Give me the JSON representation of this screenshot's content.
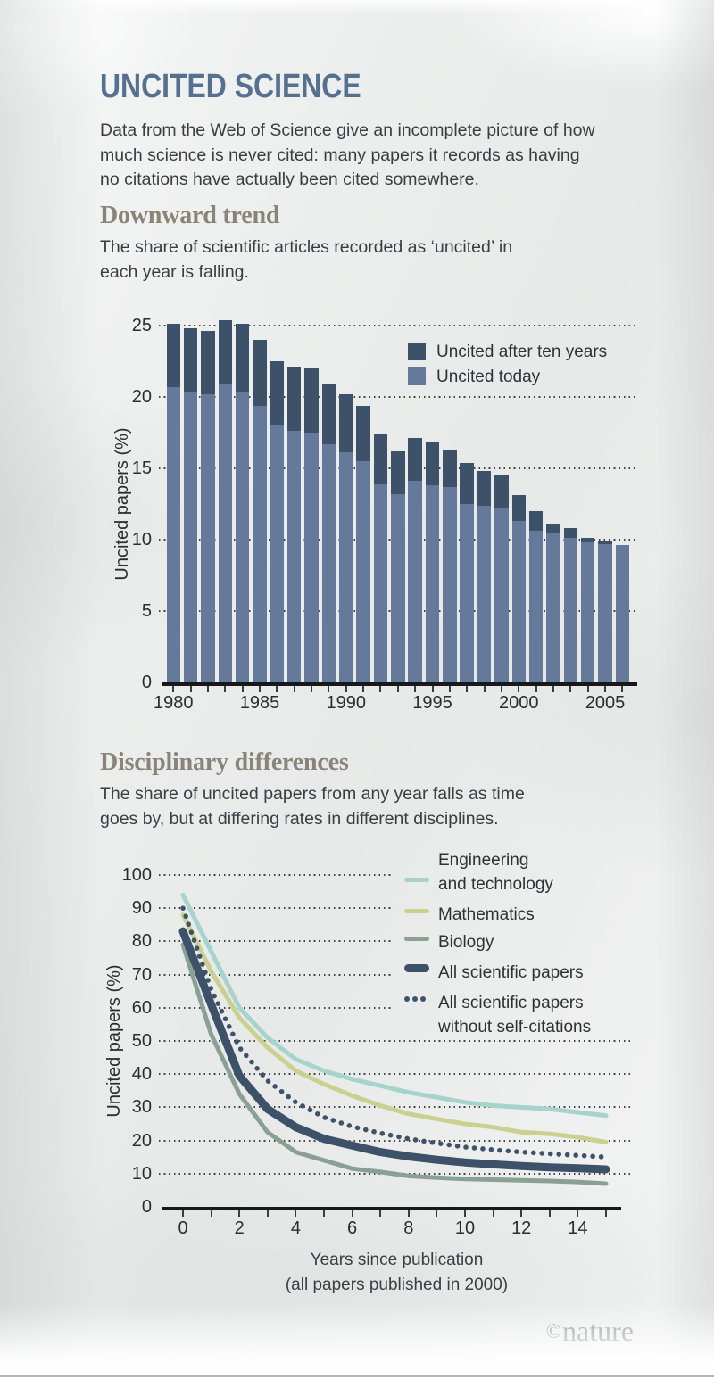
{
  "page": {
    "title": "UNCITED SCIENCE",
    "intro": "Data from the Web of Science give an incomplete picture of how\nmuch science is never cited: many papers it records as having\nno citations have actually been cited somewhere.",
    "brand_mark": "©",
    "brand_name": "nature",
    "background_color": "#edefee",
    "title_color": "#56708f",
    "heading_color": "#8a8377",
    "text_color": "#3a3e42"
  },
  "chart_data": [
    {
      "type": "bar",
      "title": "Downward trend",
      "subtitle": "The share of scientific articles recorded as ‘uncited’ in\neach year is falling.",
      "ylabel": "Uncited papers (%)",
      "ylim": [
        0,
        25
      ],
      "yticks": [
        0,
        5,
        10,
        15,
        20,
        25
      ],
      "grid": "dotted-horizontal",
      "legend_position": "top-right",
      "stacking": "overlay-total",
      "categories": [
        1980,
        1981,
        1982,
        1983,
        1984,
        1985,
        1986,
        1987,
        1988,
        1989,
        1990,
        1991,
        1992,
        1993,
        1994,
        1995,
        1996,
        1997,
        1998,
        1999,
        2000,
        2001,
        2002,
        2003,
        2004,
        2005,
        2006
      ],
      "xtick_labels": [
        "1980",
        "1985",
        "1990",
        "1995",
        "2000",
        "2005"
      ],
      "series": [
        {
          "name": "Uncited after ten years",
          "color": "#3d5168",
          "values": [
            25.1,
            24.8,
            24.6,
            25.4,
            25.1,
            24.0,
            22.5,
            22.1,
            22.0,
            20.9,
            20.2,
            19.4,
            17.4,
            16.2,
            17.1,
            16.9,
            16.3,
            15.4,
            14.8,
            14.5,
            13.1,
            12.0,
            11.1,
            10.8,
            10.1,
            9.9,
            9.6
          ]
        },
        {
          "name": "Uncited today",
          "color": "#65799a",
          "values": [
            20.7,
            20.4,
            20.2,
            20.9,
            20.4,
            19.4,
            18.0,
            17.6,
            17.5,
            16.7,
            16.1,
            15.5,
            13.9,
            13.2,
            14.1,
            13.8,
            13.7,
            12.5,
            12.4,
            12.2,
            11.3,
            10.6,
            10.5,
            10.1,
            9.8,
            9.7,
            9.6
          ]
        }
      ]
    },
    {
      "type": "line",
      "title": "Disciplinary differences",
      "subtitle": "The share of uncited papers from any year falls as time\ngoes by, but at differing rates in different disciplines.",
      "ylabel": "Uncited papers (%)",
      "xlabel_lines": [
        "Years since publication",
        "(all papers published in 2000)"
      ],
      "ylim": [
        0,
        100
      ],
      "yticks": [
        0,
        10,
        20,
        30,
        40,
        50,
        60,
        70,
        80,
        90,
        100
      ],
      "xticks_minor": [
        0,
        1,
        2,
        3,
        4,
        5,
        6,
        7,
        8,
        9,
        10,
        11,
        12,
        13,
        14,
        15
      ],
      "xtick_labels": [
        "0",
        "2",
        "4",
        "6",
        "8",
        "10",
        "12",
        "14"
      ],
      "grid": "dotted-horizontal",
      "x": [
        0,
        1,
        2,
        3,
        4,
        5,
        6,
        7,
        8,
        9,
        10,
        11,
        12,
        13,
        14,
        15
      ],
      "series": [
        {
          "name": "Engineering and technology",
          "legend_lines": [
            "Engineering",
            "and technology"
          ],
          "color": "#a6d3cc",
          "style": "solid",
          "width": 5,
          "values": [
            94,
            77,
            60,
            51,
            44.5,
            41,
            38.5,
            36.5,
            34.5,
            33,
            31.5,
            30.5,
            30,
            29.5,
            28.5,
            27.5
          ]
        },
        {
          "name": "Mathematics",
          "legend_lines": [
            "Mathematics"
          ],
          "color": "#cad090",
          "style": "solid",
          "width": 5,
          "values": [
            88,
            71,
            57,
            48,
            41,
            37,
            33.5,
            30.5,
            28,
            26.5,
            25,
            24,
            22.5,
            22,
            21,
            19.5
          ]
        },
        {
          "name": "Biology",
          "legend_lines": [
            "Biology"
          ],
          "color": "#8aa095",
          "style": "solid",
          "width": 5,
          "values": [
            79,
            52,
            34,
            22.5,
            16.5,
            14,
            11.5,
            10.5,
            9.3,
            8.8,
            8.4,
            8.2,
            8.0,
            7.8,
            7.5,
            7.0
          ]
        },
        {
          "name": "All scientific papers",
          "legend_lines": [
            "All scientific papers"
          ],
          "color": "#3d5168",
          "style": "solid",
          "width": 9,
          "values": [
            83,
            61,
            39.5,
            29.5,
            24,
            20.5,
            18.5,
            16.5,
            15.2,
            14.2,
            13.4,
            12.8,
            12.3,
            11.9,
            11.6,
            11.3
          ]
        },
        {
          "name": "All scientific papers without self-citations",
          "legend_lines": [
            "All scientific papers",
            "without self-citations"
          ],
          "color": "#3e5269",
          "style": "dotted",
          "width": 5.5,
          "values": [
            90,
            65.5,
            48,
            38,
            31.5,
            27,
            24.2,
            22.2,
            20.5,
            19.2,
            18,
            17.2,
            16.5,
            16,
            15.5,
            15
          ]
        }
      ]
    }
  ]
}
